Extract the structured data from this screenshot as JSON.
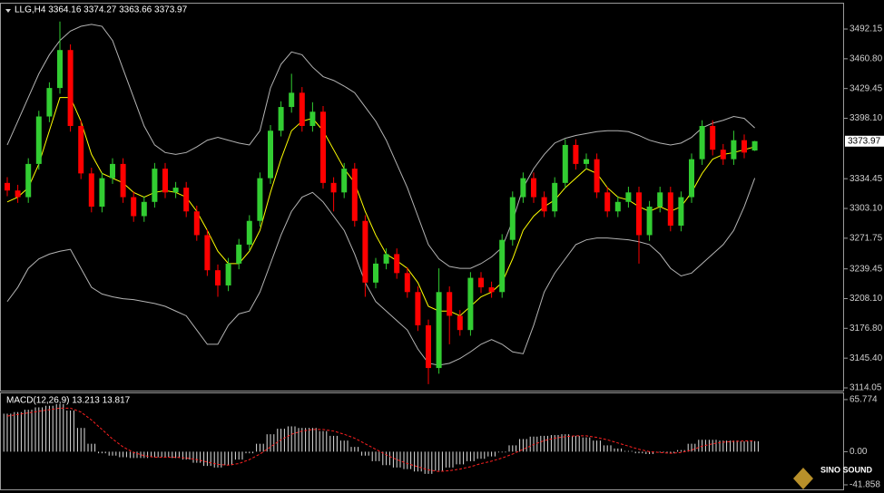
{
  "chart_data": [
    {
      "type": "candlestick",
      "title": "LLG,H4 3364.16 3374.27 3363.66 3373.97",
      "up_color": "#32cd32",
      "down_color": "#ff0000",
      "open": [
        3330,
        3322,
        3315,
        3350,
        3400,
        3430,
        3470,
        3390,
        3340,
        3305,
        3335,
        3350,
        3315,
        3295,
        3310,
        3345,
        3320,
        3325,
        3300,
        3275,
        3238,
        3222,
        3245,
        3265,
        3290,
        3335,
        3385,
        3410,
        3425,
        3390,
        3405,
        3330,
        3320,
        3345,
        3290,
        3225,
        3245,
        3255,
        3235,
        3215,
        3180,
        3135,
        3215,
        3190,
        3175,
        3230,
        3220,
        3215,
        3270,
        3315,
        3335,
        3315,
        3300,
        3330,
        3370,
        3350,
        3355,
        3320,
        3300,
        3310,
        3320,
        3275,
        3305,
        3320,
        3285,
        3315,
        3355,
        3390,
        3365,
        3355,
        3375,
        3364.16
      ],
      "high": [
        3336,
        3328,
        3356,
        3406,
        3436,
        3500,
        3476,
        3396,
        3346,
        3341,
        3356,
        3356,
        3321,
        3316,
        3351,
        3351,
        3331,
        3331,
        3306,
        3281,
        3244,
        3251,
        3271,
        3296,
        3341,
        3391,
        3416,
        3445,
        3431,
        3415,
        3411,
        3336,
        3351,
        3351,
        3296,
        3251,
        3261,
        3261,
        3241,
        3221,
        3186,
        3240,
        3221,
        3196,
        3236,
        3236,
        3226,
        3276,
        3321,
        3341,
        3341,
        3321,
        3336,
        3376,
        3376,
        3361,
        3361,
        3326,
        3316,
        3326,
        3326,
        3311,
        3326,
        3326,
        3321,
        3361,
        3396,
        3396,
        3371,
        3385,
        3381,
        3374.27
      ],
      "low": [
        3316,
        3309,
        3309,
        3344,
        3394,
        3424,
        3384,
        3334,
        3299,
        3299,
        3329,
        3309,
        3289,
        3289,
        3304,
        3314,
        3314,
        3294,
        3269,
        3232,
        3210,
        3216,
        3239,
        3259,
        3284,
        3329,
        3379,
        3404,
        3384,
        3384,
        3324,
        3300,
        3314,
        3284,
        3210,
        3219,
        3239,
        3229,
        3209,
        3174,
        3118,
        3129,
        3160,
        3169,
        3169,
        3214,
        3209,
        3209,
        3264,
        3309,
        3309,
        3294,
        3294,
        3324,
        3344,
        3344,
        3314,
        3294,
        3294,
        3304,
        3245,
        3269,
        3299,
        3279,
        3279,
        3309,
        3349,
        3359,
        3349,
        3349,
        3356,
        3363.66
      ],
      "close": [
        3322,
        3315,
        3350,
        3400,
        3430,
        3470,
        3390,
        3340,
        3305,
        3335,
        3350,
        3315,
        3295,
        3310,
        3345,
        3320,
        3325,
        3300,
        3275,
        3238,
        3222,
        3245,
        3265,
        3290,
        3335,
        3385,
        3410,
        3425,
        3390,
        3405,
        3330,
        3320,
        3345,
        3290,
        3225,
        3245,
        3255,
        3235,
        3215,
        3180,
        3135,
        3215,
        3190,
        3175,
        3230,
        3220,
        3215,
        3270,
        3315,
        3335,
        3315,
        3300,
        3330,
        3370,
        3350,
        3355,
        3320,
        3300,
        3310,
        3320,
        3275,
        3305,
        3320,
        3285,
        3315,
        3355,
        3390,
        3365,
        3355,
        3375,
        3362,
        3373.97
      ],
      "series": [
        {
          "color": "#ffff00",
          "values": [
            3310,
            3315,
            3325,
            3350,
            3385,
            3420,
            3420,
            3395,
            3360,
            3340,
            3335,
            3330,
            3320,
            3315,
            3320,
            3322,
            3320,
            3315,
            3300,
            3280,
            3258,
            3245,
            3245,
            3258,
            3280,
            3320,
            3355,
            3385,
            3395,
            3398,
            3385,
            3365,
            3345,
            3330,
            3300,
            3275,
            3255,
            3248,
            3240,
            3225,
            3200,
            3195,
            3195,
            3190,
            3200,
            3210,
            3215,
            3225,
            3250,
            3280,
            3295,
            3305,
            3312,
            3325,
            3335,
            3345,
            3340,
            3325,
            3315,
            3312,
            3305,
            3300,
            3305,
            3300,
            3305,
            3320,
            3340,
            3355,
            3360,
            3362,
            3365,
            3368
          ]
        },
        {
          "color": "#b4b4b4",
          "values": [
            3370,
            3395,
            3420,
            3445,
            3465,
            3480,
            3490,
            3495,
            3497,
            3495,
            3480,
            3450,
            3420,
            3390,
            3370,
            3362,
            3360,
            3362,
            3368,
            3375,
            3378,
            3375,
            3372,
            3370,
            3385,
            3430,
            3455,
            3468,
            3465,
            3452,
            3442,
            3438,
            3432,
            3425,
            3410,
            3395,
            3375,
            3350,
            3325,
            3295,
            3265,
            3250,
            3242,
            3240,
            3240,
            3245,
            3252,
            3262,
            3290,
            3325,
            3345,
            3360,
            3372,
            3377,
            3380,
            3382,
            3384,
            3385,
            3385,
            3384,
            3380,
            3375,
            3372,
            3370,
            3372,
            3378,
            3388,
            3393,
            3396,
            3400,
            3398,
            3388
          ]
        },
        {
          "color": "#b4b4b4",
          "values": [
            3205,
            3220,
            3240,
            3250,
            3255,
            3258,
            3260,
            3240,
            3220,
            3213,
            3210,
            3208,
            3207,
            3205,
            3203,
            3200,
            3195,
            3190,
            3175,
            3160,
            3160,
            3180,
            3192,
            3195,
            3215,
            3245,
            3275,
            3300,
            3315,
            3320,
            3310,
            3295,
            3280,
            3255,
            3225,
            3205,
            3195,
            3185,
            3175,
            3155,
            3140,
            3138,
            3140,
            3145,
            3152,
            3160,
            3165,
            3160,
            3152,
            3150,
            3180,
            3215,
            3235,
            3250,
            3265,
            3270,
            3272,
            3272,
            3271,
            3270,
            3268,
            3265,
            3255,
            3240,
            3232,
            3235,
            3245,
            3255,
            3265,
            3280,
            3305,
            3335
          ]
        }
      ],
      "last_price": 3373.97,
      "ylim": [
        3111.2,
        3518.9
      ],
      "yticks": [
        3492.15,
        {
          "value": 3460.8,
          "label": "3460.80"
        },
        3429.45,
        {
          "value": 3398.1,
          "label": "3398.10"
        },
        3334.45,
        {
          "value": 3303.1,
          "label": "3303.10"
        },
        3271.75,
        3239.45,
        {
          "value": 3208.1,
          "label": "3208.10"
        },
        {
          "value": 3176.8,
          "label": "3176.80"
        },
        {
          "value": 3145.4,
          "label": "3145.40"
        },
        3114.05
      ]
    },
    {
      "type": "macd",
      "title": "MACD(12,26,9) 13.213 13.817",
      "histogram": {
        "color": "#e0e0e0",
        "values": [
          48,
          50,
          53,
          56,
          58,
          60,
          52,
          30,
          10,
          -2,
          -5,
          -7,
          -8,
          -8,
          -7,
          -7,
          -8,
          -10,
          -14,
          -18,
          -20,
          -17,
          -10,
          -2,
          10,
          22,
          29,
          32,
          30,
          30,
          26,
          20,
          14,
          6,
          -5,
          -12,
          -17,
          -20,
          -22,
          -25,
          -28,
          -24,
          -20,
          -16,
          -12,
          -9,
          -6,
          -1,
          8,
          16,
          19,
          20,
          21,
          22,
          20,
          18,
          14,
          8,
          4,
          1,
          -2,
          -3,
          -1,
          -2,
          2,
          10,
          15,
          15,
          14,
          14,
          13,
          13.213
        ]
      },
      "signal": {
        "color": "#ff2020",
        "values": [
          45,
          47,
          49,
          51,
          53,
          55,
          55,
          50,
          40,
          28,
          16,
          6,
          -1,
          -5,
          -7,
          -7,
          -7,
          -8,
          -10,
          -13,
          -16,
          -17,
          -15,
          -10,
          -3,
          6,
          15,
          22,
          26,
          28,
          28,
          26,
          22,
          17,
          10,
          3,
          -4,
          -10,
          -15,
          -19,
          -23,
          -25,
          -24,
          -22,
          -19,
          -15,
          -12,
          -8,
          -3,
          3,
          9,
          14,
          17,
          19,
          20,
          20,
          18,
          15,
          11,
          7,
          3,
          0,
          -1,
          -2,
          -1,
          2,
          7,
          10,
          12,
          13,
          13.5,
          13.817
        ]
      },
      "ylim": [
        -47.6,
        73.7
      ],
      "yticks": [
        65.774,
        {
          "value": 0,
          "label": "0.00"
        },
        -41.858
      ]
    },
    {
      "type": "logo",
      "title": "SINO SOUND"
    }
  ]
}
